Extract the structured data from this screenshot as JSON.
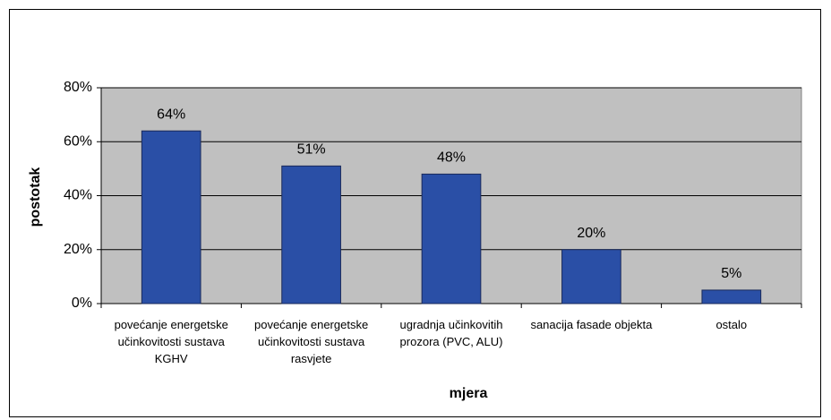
{
  "chart_data": {
    "type": "bar",
    "x_label": "mjera",
    "y_label": "postotak",
    "categories": [
      "povećanje energetske učinkovitosti sustava KGHV",
      "povećanje energetske učinkovitosti sustava rasvjete",
      "ugradnja učinkovitih prozora (PVC, ALU)",
      "sanacija fasade objekta",
      "ostalo"
    ],
    "values": [
      64,
      51,
      48,
      20,
      5
    ],
    "value_labels": [
      "64%",
      "51%",
      "48%",
      "20%",
      "5%"
    ],
    "color": "#2a4fa6",
    "ylim": [
      0,
      80
    ],
    "yticks": [
      {
        "value": 0,
        "label": "0%"
      },
      {
        "value": 20,
        "label": "20%"
      },
      {
        "value": 40,
        "label": "40%"
      },
      {
        "value": 60,
        "label": "60%"
      },
      {
        "value": 80,
        "label": "80%"
      }
    ],
    "grid": true
  }
}
